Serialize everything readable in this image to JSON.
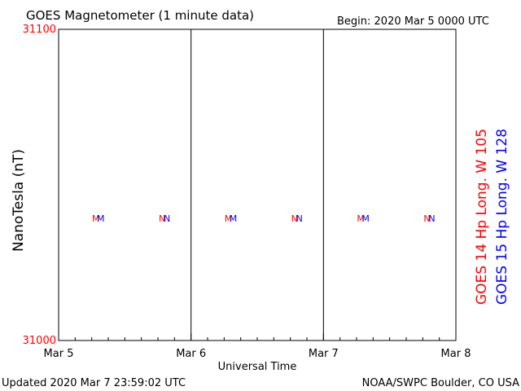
{
  "title": "GOES Magnetometer (1 minute data)",
  "begin_label": "Begin:  2020 Mar 5 0000 UTC",
  "footer_left": "Updated 2020 Mar  7 23:59:02 UTC",
  "footer_right": "NOAA/SWPC Boulder, CO USA",
  "colors": {
    "series1": "#ff0000",
    "series2": "#0000ff",
    "axis": "#000000",
    "ytick": "#ff0000"
  },
  "chart_data": {
    "type": "line",
    "title": "GOES Magnetometer (1 minute data)",
    "xlabel": "Universal Time",
    "ylabel": "NanoTesla (nT)",
    "ylim": [
      31000,
      31100
    ],
    "y_ticks": [
      "31100",
      "31000"
    ],
    "x_ticks": [
      "Mar 5",
      "Mar 6",
      "Mar 7",
      "Mar 8"
    ],
    "xlim_days": [
      0,
      3
    ],
    "grid": false,
    "series": [
      {
        "name": "GOES 14 Hp  Long. W 105",
        "color": "#ff0000",
        "values": []
      },
      {
        "name": "GOES 15 Hp  Long. W 128",
        "color": "#0000ff",
        "values": []
      }
    ],
    "missing_markers": [
      {
        "day_offset": 0.3,
        "labels": [
          "M",
          "M"
        ]
      },
      {
        "day_offset": 0.8,
        "labels": [
          "N",
          "N"
        ]
      },
      {
        "day_offset": 1.3,
        "labels": [
          "M",
          "M"
        ]
      },
      {
        "day_offset": 1.8,
        "labels": [
          "N",
          "N"
        ]
      },
      {
        "day_offset": 2.3,
        "labels": [
          "M",
          "M"
        ]
      },
      {
        "day_offset": 2.8,
        "labels": [
          "N",
          "N"
        ]
      }
    ]
  }
}
